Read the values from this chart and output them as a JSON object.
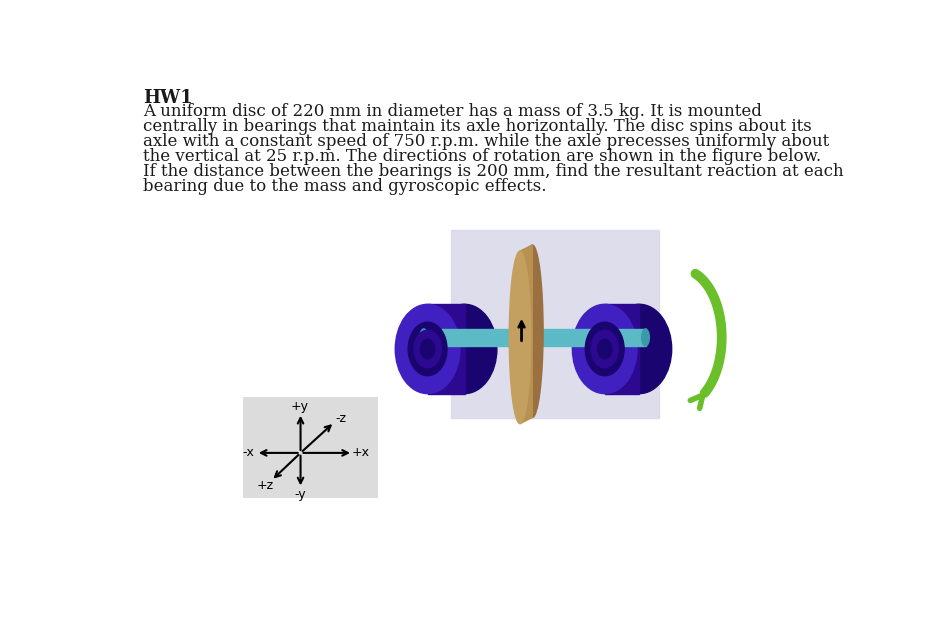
{
  "title": "HW1",
  "body_text_lines": [
    "A uniform disc of 220 mm in diameter has a mass of 3.5 kg. It is mounted",
    "centrally in bearings that maintain its axle horizontally. The disc spins about its",
    "axle with a constant speed of 750 r.p.m. while the axle precesses uniformly about",
    "the vertical at 25 r.p.m. The directions of rotation are shown in the figure below.",
    "If the distance between the bearings is 200 mm, find the resultant reaction at each",
    "bearing due to the mass and gyroscopic effects."
  ],
  "background_color": "#ffffff",
  "text_color": "#1a1a1a",
  "figure_bg": "#d8d8e8",
  "disc_color_front": "#c4a060",
  "disc_color_side": "#b89050",
  "disc_color_back": "#9a7040",
  "bearing_dark": "#1a0570",
  "bearing_mid": "#2d0890",
  "bearing_bright": "#4020c0",
  "axle_color": "#5bbac5",
  "axle_dark": "#3a9aaa",
  "arrow_green": "#6abf2a",
  "axis_box_bg": "#dcdcdc",
  "font_size_title": 13,
  "font_size_body": 12,
  "font_size_axis": 9
}
